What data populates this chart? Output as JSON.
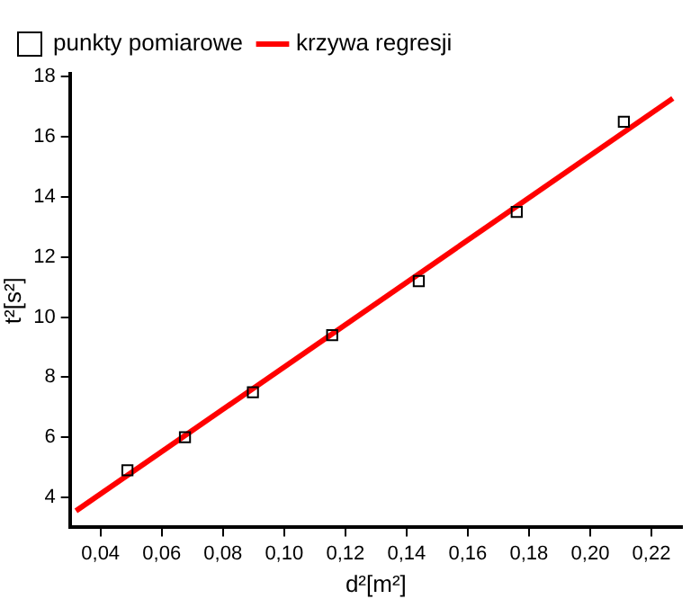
{
  "chart_data": {
    "type": "scatter",
    "xlabel": "d²[m²]",
    "ylabel": "t²[s²]",
    "xlim": [
      0.03,
      0.23
    ],
    "ylim": [
      3,
      18.1
    ],
    "xticks": [
      {
        "value": 0.04,
        "label": "0,04"
      },
      {
        "value": 0.06,
        "label": "0,06"
      },
      {
        "value": 0.08,
        "label": "0,08"
      },
      {
        "value": 0.1,
        "label": "0,10"
      },
      {
        "value": 0.12,
        "label": "0,12"
      },
      {
        "value": 0.14,
        "label": "0,14"
      },
      {
        "value": 0.16,
        "label": "0,16"
      },
      {
        "value": 0.18,
        "label": "0,18"
      },
      {
        "value": 0.2,
        "label": "0,20"
      },
      {
        "value": 0.22,
        "label": "0,22"
      }
    ],
    "yticks": [
      4,
      6,
      8,
      10,
      12,
      14,
      16,
      18
    ],
    "grid": false,
    "legend": "top left",
    "marker": "square",
    "series": [
      {
        "name": "punkty pomiarowe",
        "color": "#000000",
        "x": [
          0.0488,
          0.0676,
          0.0898,
          0.1157,
          0.144,
          0.176,
          0.211
        ],
        "values": [
          4.9,
          6.0,
          7.5,
          9.4,
          11.2,
          13.5,
          16.5
        ]
      },
      {
        "name": "krzywa regresji",
        "type": "line",
        "color": "#ff0000",
        "marker": "none",
        "line_style": "solid",
        "x": [
          0.032,
          0.227
        ],
        "values": [
          3.55,
          17.28
        ]
      }
    ]
  }
}
